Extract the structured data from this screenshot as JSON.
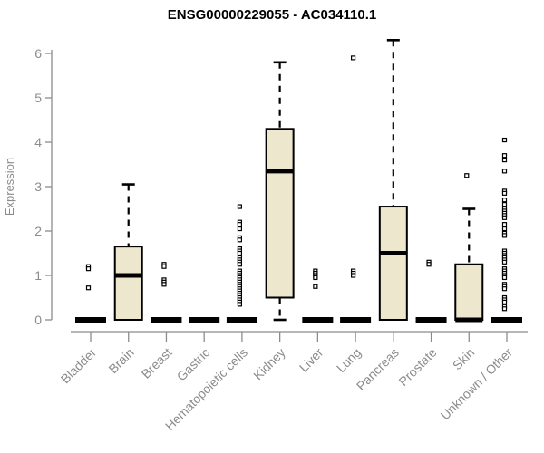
{
  "chart_data": {
    "type": "boxplot",
    "title": "ENSG00000229055 - AC034110.1",
    "ylabel": "Expression",
    "ylim": [
      0,
      6.4
    ],
    "yticks": [
      0,
      1,
      2,
      3,
      4,
      5,
      6
    ],
    "grid": false,
    "axis_color": "#8c8c8c",
    "box_fill": "#EDE7CE",
    "box_stroke": "#000000",
    "categories": [
      "Bladder",
      "Brain",
      "Breast",
      "Gastric",
      "Hematopoietic cells",
      "Kidney",
      "Liver",
      "Lung",
      "Pancreas",
      "Prostate",
      "Skin",
      "Unknown / Other"
    ],
    "series": [
      {
        "category": "Bladder",
        "q1": 0,
        "median": 0,
        "q3": 0,
        "whisker_low": 0,
        "whisker_high": 0,
        "outliers": [
          1.2,
          1.15,
          0.72
        ]
      },
      {
        "category": "Brain",
        "q1": 0,
        "median": 1.0,
        "q3": 1.65,
        "whisker_low": 0,
        "whisker_high": 3.05,
        "outliers": []
      },
      {
        "category": "Breast",
        "q1": 0,
        "median": 0,
        "q3": 0,
        "whisker_low": 0,
        "whisker_high": 0,
        "outliers": [
          1.25,
          1.2,
          0.9,
          0.85,
          0.8
        ]
      },
      {
        "category": "Gastric",
        "q1": 0,
        "median": 0,
        "q3": 0,
        "whisker_low": 0,
        "whisker_high": 0,
        "outliers": []
      },
      {
        "category": "Hematopoietic cells",
        "q1": 0,
        "median": 0,
        "q3": 0,
        "whisker_low": 0,
        "whisker_high": 0,
        "outliers": [
          2.55,
          2.2,
          2.15,
          2.05,
          1.85,
          1.8,
          1.6,
          1.55,
          1.5,
          1.4,
          1.35,
          1.3,
          1.25,
          1.1,
          1.05,
          1.0,
          0.95,
          0.9,
          0.85,
          0.8,
          0.75,
          0.7,
          0.65,
          0.6,
          0.55,
          0.5,
          0.45,
          0.4,
          0.35
        ]
      },
      {
        "category": "Kidney",
        "q1": 0.5,
        "median": 3.35,
        "q3": 4.3,
        "whisker_low": 0,
        "whisker_high": 5.8,
        "outliers": []
      },
      {
        "category": "Liver",
        "q1": 0,
        "median": 0,
        "q3": 0,
        "whisker_low": 0,
        "whisker_high": 0,
        "outliers": [
          1.1,
          1.05,
          1.0,
          0.95,
          0.75
        ]
      },
      {
        "category": "Lung",
        "q1": 0,
        "median": 0,
        "q3": 0,
        "whisker_low": 0,
        "whisker_high": 0,
        "outliers": [
          5.9,
          1.1,
          1.05,
          1.0
        ]
      },
      {
        "category": "Pancreas",
        "q1": 0,
        "median": 1.5,
        "q3": 2.55,
        "whisker_low": 0,
        "whisker_high": 6.3,
        "outliers": []
      },
      {
        "category": "Prostate",
        "q1": 0,
        "median": 0,
        "q3": 0,
        "whisker_low": 0,
        "whisker_high": 0,
        "outliers": [
          1.3,
          1.25
        ]
      },
      {
        "category": "Skin",
        "q1": 0,
        "median": 0,
        "q3": 1.25,
        "whisker_low": 0,
        "whisker_high": 2.5,
        "outliers": [
          3.25
        ]
      },
      {
        "category": "Unknown / Other",
        "q1": 0,
        "median": 0,
        "q3": 0,
        "whisker_low": 0,
        "whisker_high": 0,
        "outliers": [
          4.05,
          3.7,
          3.6,
          3.35,
          2.9,
          2.85,
          2.7,
          2.6,
          2.5,
          2.45,
          2.4,
          2.35,
          2.3,
          2.15,
          2.05,
          1.95,
          1.9,
          1.55,
          1.5,
          1.45,
          1.4,
          1.35,
          1.3,
          1.15,
          1.1,
          1.05,
          1.0,
          0.95,
          0.8,
          0.75,
          0.7,
          0.5,
          0.45,
          0.4,
          0.3,
          0.25
        ]
      }
    ]
  }
}
